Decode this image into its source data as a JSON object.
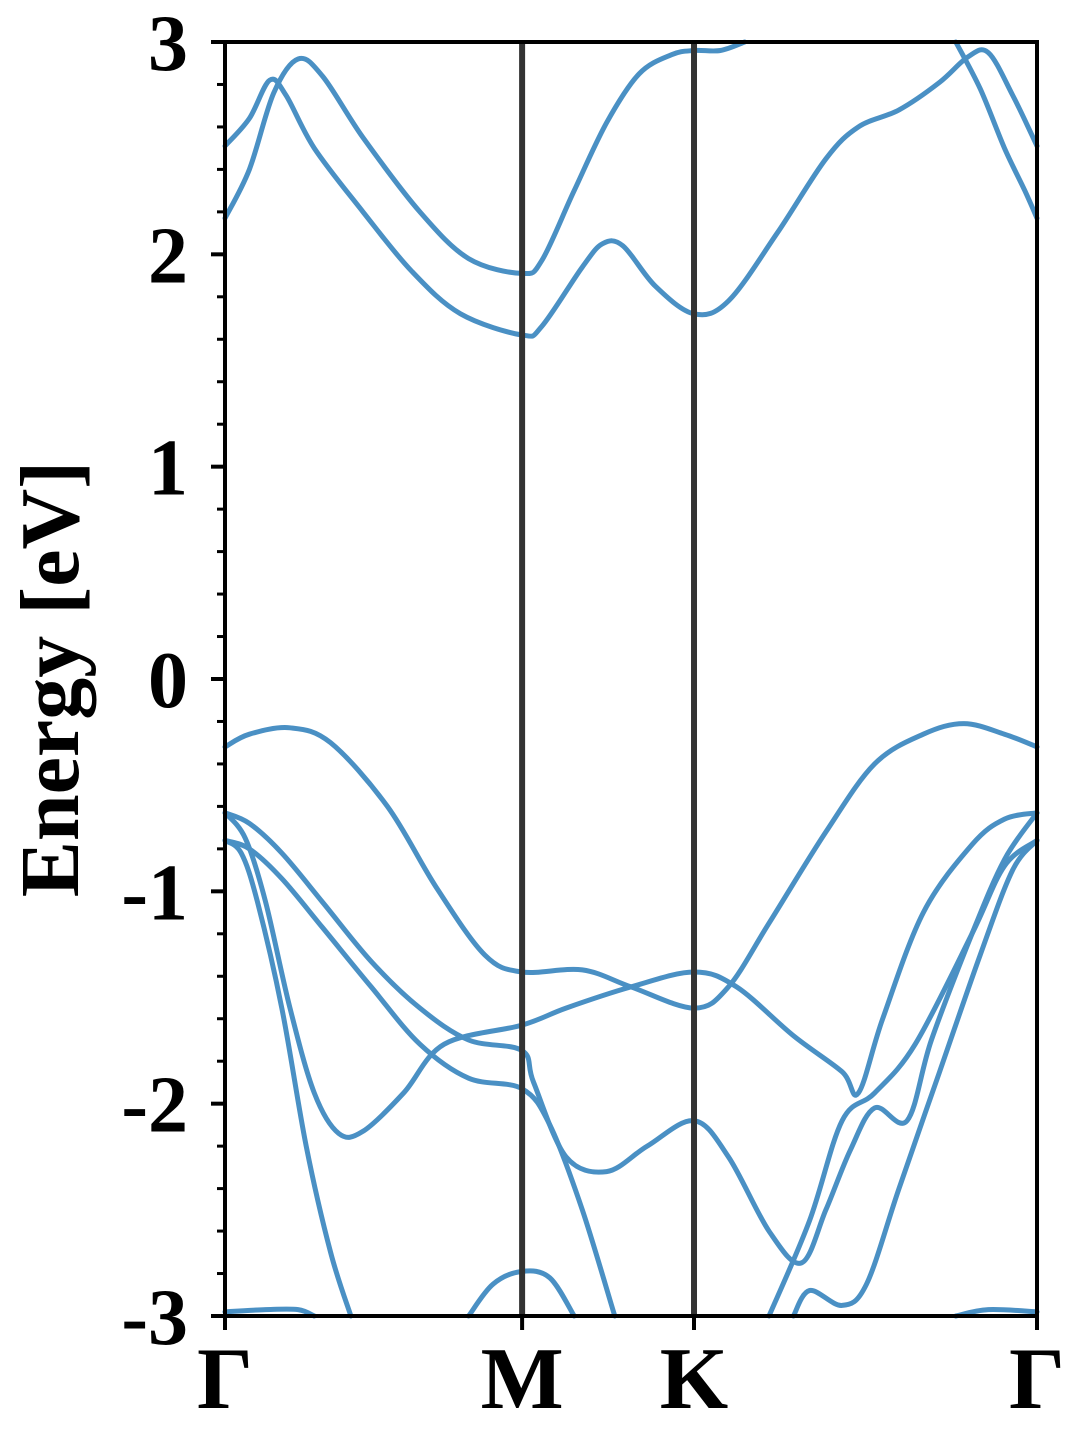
{
  "chart_data": {
    "type": "line",
    "title": "",
    "xlabel": "",
    "ylabel": "Energy [eV]",
    "xlim": [
      0,
      1
    ],
    "ylim": [
      -3,
      3
    ],
    "grid": false,
    "legend": "none",
    "yticks": [
      "3",
      "2",
      "1",
      "0",
      "-1",
      "-2",
      "-3"
    ],
    "ytick_values": [
      3,
      2,
      1,
      0,
      -1,
      -2,
      -3
    ],
    "minor_ytick_step": 0.2,
    "kpoints": [
      {
        "label": "Γ",
        "x": 0.0
      },
      {
        "label": "M",
        "x": 0.3659
      },
      {
        "label": "K",
        "x": 0.5776
      },
      {
        "label": "Γ",
        "x": 1.0
      }
    ],
    "line_color": "#4a90c4",
    "divider_color": "#333333",
    "series": [
      {
        "points": [
          [
            0.0,
            2.51
          ],
          [
            0.03,
            2.64
          ],
          [
            0.055,
            2.82
          ],
          [
            0.075,
            2.75
          ],
          [
            0.11,
            2.5
          ],
          [
            0.17,
            2.2
          ],
          [
            0.23,
            1.92
          ],
          [
            0.29,
            1.72
          ],
          [
            0.3659,
            1.62
          ],
          [
            0.39,
            1.66
          ],
          [
            0.44,
            1.94
          ],
          [
            0.465,
            2.05
          ],
          [
            0.49,
            2.04
          ],
          [
            0.53,
            1.85
          ],
          [
            0.5776,
            1.72
          ],
          [
            0.62,
            1.78
          ],
          [
            0.68,
            2.1
          ],
          [
            0.74,
            2.45
          ],
          [
            0.78,
            2.6
          ],
          [
            0.83,
            2.68
          ],
          [
            0.88,
            2.81
          ],
          [
            0.915,
            2.93
          ],
          [
            0.94,
            2.95
          ],
          [
            0.97,
            2.75
          ],
          [
            1.0,
            2.51
          ]
        ]
      },
      {
        "points": [
          [
            0.0,
            2.17
          ],
          [
            0.03,
            2.4
          ],
          [
            0.06,
            2.76
          ],
          [
            0.09,
            2.92
          ],
          [
            0.12,
            2.84
          ],
          [
            0.17,
            2.55
          ],
          [
            0.24,
            2.2
          ],
          [
            0.3,
            1.98
          ],
          [
            0.3659,
            1.91
          ],
          [
            0.39,
            1.97
          ],
          [
            0.43,
            2.3
          ],
          [
            0.47,
            2.62
          ],
          [
            0.51,
            2.85
          ],
          [
            0.55,
            2.94
          ],
          [
            0.5776,
            2.96
          ],
          [
            0.61,
            2.96
          ],
          [
            0.64,
            3.0
          ]
        ]
      },
      {
        "points": [
          [
            0.9,
            3.0
          ],
          [
            0.93,
            2.78
          ],
          [
            0.96,
            2.5
          ],
          [
            0.985,
            2.3
          ],
          [
            1.0,
            2.17
          ]
        ]
      },
      {
        "points": [
          [
            0.0,
            -0.32
          ],
          [
            0.03,
            -0.26
          ],
          [
            0.08,
            -0.23
          ],
          [
            0.13,
            -0.3
          ],
          [
            0.2,
            -0.6
          ],
          [
            0.26,
            -0.98
          ],
          [
            0.32,
            -1.3
          ],
          [
            0.3659,
            -1.38
          ],
          [
            0.44,
            -1.37
          ],
          [
            0.5,
            -1.45
          ],
          [
            0.5776,
            -1.55
          ],
          [
            0.62,
            -1.45
          ],
          [
            0.67,
            -1.15
          ],
          [
            0.74,
            -0.72
          ],
          [
            0.8,
            -0.4
          ],
          [
            0.86,
            -0.26
          ],
          [
            0.91,
            -0.21
          ],
          [
            0.96,
            -0.26
          ],
          [
            1.0,
            -0.32
          ]
        ]
      },
      {
        "points": [
          [
            0.0,
            -0.63
          ],
          [
            0.03,
            -0.68
          ],
          [
            0.07,
            -0.82
          ],
          [
            0.12,
            -1.05
          ],
          [
            0.18,
            -1.33
          ],
          [
            0.24,
            -1.55
          ],
          [
            0.3,
            -1.7
          ],
          [
            0.3659,
            -1.75
          ],
          [
            0.38,
            -1.9
          ],
          [
            0.42,
            -2.25
          ],
          [
            0.47,
            -2.32
          ],
          [
            0.52,
            -2.2
          ],
          [
            0.5776,
            -2.08
          ],
          [
            0.62,
            -2.25
          ],
          [
            0.67,
            -2.6
          ],
          [
            0.71,
            -2.75
          ],
          [
            0.74,
            -2.5
          ],
          [
            0.77,
            -2.22
          ],
          [
            0.8,
            -2.02
          ],
          [
            0.84,
            -2.08
          ],
          [
            0.87,
            -1.7
          ],
          [
            0.92,
            -1.2
          ],
          [
            0.96,
            -0.85
          ],
          [
            1.0,
            -0.63
          ]
        ]
      },
      {
        "points": [
          [
            0.0,
            -0.76
          ],
          [
            0.03,
            -0.8
          ],
          [
            0.07,
            -0.94
          ],
          [
            0.12,
            -1.17
          ],
          [
            0.18,
            -1.45
          ],
          [
            0.24,
            -1.72
          ],
          [
            0.3,
            -1.88
          ],
          [
            0.3659,
            -1.93
          ],
          [
            0.4,
            -2.1
          ],
          [
            0.44,
            -2.5
          ],
          [
            0.48,
            -3.0
          ]
        ]
      },
      {
        "points": [
          [
            0.0,
            -0.63
          ],
          [
            0.025,
            -0.75
          ],
          [
            0.05,
            -1.05
          ],
          [
            0.08,
            -1.55
          ],
          [
            0.11,
            -1.95
          ],
          [
            0.14,
            -2.14
          ],
          [
            0.17,
            -2.13
          ],
          [
            0.22,
            -1.95
          ],
          [
            0.27,
            -1.72
          ],
          [
            0.3659,
            -1.63
          ],
          [
            0.42,
            -1.55
          ],
          [
            0.5,
            -1.45
          ],
          [
            0.5776,
            -1.38
          ],
          [
            0.63,
            -1.45
          ],
          [
            0.7,
            -1.68
          ],
          [
            0.76,
            -1.85
          ],
          [
            0.78,
            -1.95
          ],
          [
            0.81,
            -1.6
          ],
          [
            0.86,
            -1.1
          ],
          [
            0.92,
            -0.78
          ],
          [
            0.96,
            -0.66
          ],
          [
            1.0,
            -0.63
          ]
        ]
      },
      {
        "points": [
          [
            0.0,
            -0.76
          ],
          [
            0.02,
            -0.82
          ],
          [
            0.04,
            -1.05
          ],
          [
            0.07,
            -1.55
          ],
          [
            0.1,
            -2.2
          ],
          [
            0.13,
            -2.7
          ],
          [
            0.155,
            -3.0
          ]
        ]
      },
      {
        "points": [
          [
            0.0,
            -2.98
          ],
          [
            0.05,
            -2.97
          ],
          [
            0.09,
            -2.97
          ],
          [
            0.11,
            -3.0
          ]
        ]
      },
      {
        "points": [
          [
            0.3,
            -3.0
          ],
          [
            0.33,
            -2.85
          ],
          [
            0.3659,
            -2.79
          ],
          [
            0.4,
            -2.82
          ],
          [
            0.43,
            -3.0
          ]
        ]
      },
      {
        "points": [
          [
            0.67,
            -3.0
          ],
          [
            0.72,
            -2.55
          ],
          [
            0.76,
            -2.08
          ],
          [
            0.8,
            -1.95
          ],
          [
            0.85,
            -1.72
          ],
          [
            0.92,
            -1.2
          ],
          [
            0.96,
            -0.88
          ],
          [
            1.0,
            -0.76
          ]
        ]
      },
      {
        "points": [
          [
            0.7,
            -3.0
          ],
          [
            0.72,
            -2.88
          ],
          [
            0.76,
            -2.95
          ],
          [
            0.79,
            -2.85
          ],
          [
            0.83,
            -2.4
          ],
          [
            0.88,
            -1.85
          ],
          [
            0.93,
            -1.3
          ],
          [
            0.97,
            -0.9
          ],
          [
            1.0,
            -0.76
          ]
        ]
      },
      {
        "points": [
          [
            0.9,
            -3.0
          ],
          [
            0.94,
            -2.97
          ],
          [
            1.0,
            -2.98
          ]
        ]
      }
    ]
  }
}
